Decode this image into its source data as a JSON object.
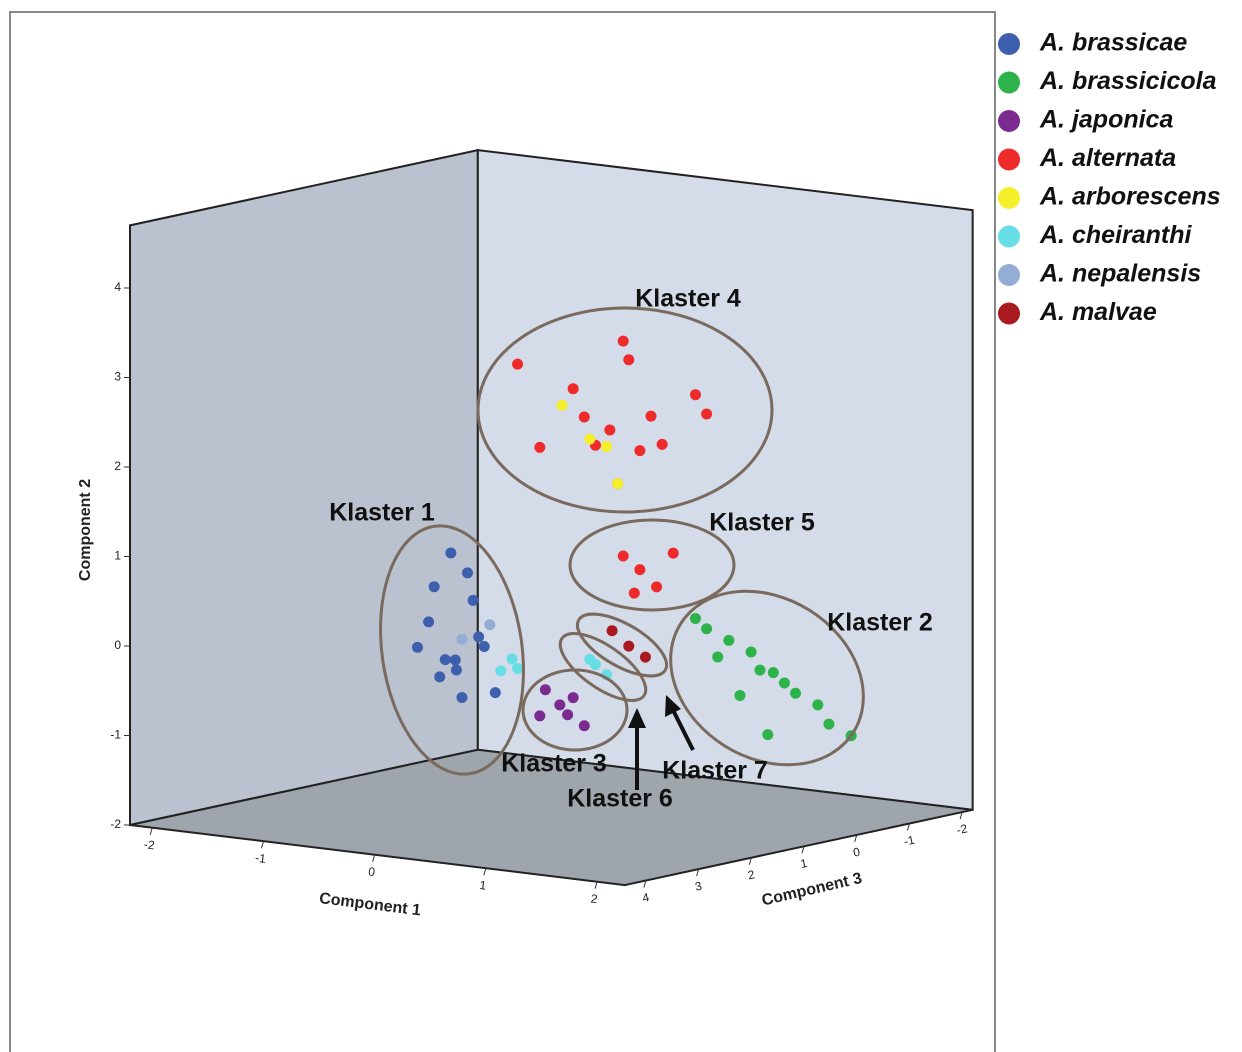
{
  "chart_data": {
    "type": "scatter3d",
    "x_label": "Component 1",
    "y_label": "Component 2",
    "z_label": "Component 3",
    "xlim": [
      -2.2,
      2.25
    ],
    "ylim": [
      -2,
      4.7
    ],
    "zlim": [
      -2.2,
      4.4
    ],
    "xticks": [
      -2,
      -1,
      0,
      1,
      2
    ],
    "yticks": [
      -2,
      -1,
      0,
      1,
      2,
      3,
      4
    ],
    "zticks": [
      4,
      3,
      2,
      1,
      0,
      -1,
      -2
    ],
    "legend": "right",
    "series": [
      {
        "name": "A. brassicae",
        "color": "#3e5fae",
        "x": [
          -1.36,
          -1.6,
          -1.1,
          -1.5,
          -1.2,
          -1.7,
          -1.0,
          -1.4,
          -1.3,
          -1.55,
          -1.15,
          -1.45,
          -1.25,
          -1.35
        ],
        "y": [
          -0.59,
          -0.2,
          -0.4,
          -0.8,
          0.1,
          -0.5,
          -0.9,
          0.6,
          -1.0,
          0.2,
          -0.3,
          -0.6,
          0.4,
          -0.7
        ],
        "z": [
          0,
          0,
          0,
          0,
          0,
          0,
          0,
          0,
          0,
          0,
          0,
          0,
          0,
          0
        ]
      },
      {
        "name": "A. brassicicola",
        "color": "#2db34a",
        "x": [
          1.38,
          0.9,
          1.1,
          1.6,
          1.9,
          0.8,
          1.3,
          1.7,
          2.0,
          1.0,
          1.5,
          1.2,
          2.2,
          1.45
        ],
        "y": [
          -0.29,
          0.1,
          0.0,
          -0.4,
          -0.6,
          0.2,
          -0.1,
          -0.5,
          -0.8,
          -0.2,
          -0.3,
          -0.6,
          -0.9,
          -1.0
        ],
        "z": [
          0,
          0,
          0,
          0,
          0,
          0,
          0,
          0,
          0,
          0,
          0,
          0,
          0,
          0
        ]
      },
      {
        "name": "A. japonica",
        "color": "#7b2a8f",
        "x": [
          -0.42,
          -0.55,
          -0.3,
          -0.6,
          -0.35,
          -0.2
        ],
        "y": [
          -0.95,
          -0.8,
          -0.85,
          -1.1,
          -1.05,
          -1.15
        ],
        "z": [
          0,
          0,
          0,
          0,
          0,
          0
        ]
      },
      {
        "name": "A. alternata",
        "color": "#ee2a2a",
        "x": [
          0.03,
          -0.3,
          0.2,
          -0.1,
          0.4,
          -0.8,
          0.8,
          0.1,
          0.15,
          -0.2,
          0.5,
          -0.6,
          0.9,
          0.3,
          0.3,
          0.15,
          0.45,
          0.6,
          0.25
        ],
        "y": [
          2.19,
          2.6,
          3.0,
          2.0,
          2.4,
          2.8,
          2.7,
          1.6,
          3.2,
          2.3,
          2.1,
          1.9,
          2.5,
          2.0,
          0.67,
          0.8,
          0.5,
          0.9,
          0.4
        ],
        "z": [
          0,
          0,
          0,
          0,
          0,
          0,
          0,
          0,
          0,
          0,
          0,
          0,
          0,
          0,
          0,
          0,
          0,
          0,
          0
        ]
      },
      {
        "name": "A. arborescens",
        "color": "#f5ee2a",
        "x": [
          -0.4,
          -0.15,
          0.0,
          0.1
        ],
        "y": [
          2.4,
          2.06,
          2.0,
          1.6
        ],
        "z": [
          0,
          0,
          0,
          0
        ]
      },
      {
        "name": "A. cheiranthi",
        "color": "#67dde6",
        "x": [
          -0.85,
          -0.95,
          -0.8,
          -0.1,
          0.0,
          -0.15
        ],
        "y": [
          -0.5,
          -0.65,
          -0.6,
          -0.45,
          -0.55,
          -0.4
        ],
        "z": [
          0,
          0,
          0,
          0,
          0,
          0
        ]
      },
      {
        "name": "A. nepalensis",
        "color": "#93add4",
        "x": [
          -1.3,
          -1.05
        ],
        "y": [
          -0.35,
          -0.15
        ],
        "z": [
          0,
          0
        ]
      },
      {
        "name": "A. malvae",
        "color": "#a81a1f",
        "x": [
          0.05,
          0.2,
          0.35
        ],
        "y": [
          -0.05,
          -0.2,
          -0.3
        ],
        "z": [
          0,
          0,
          0
        ]
      }
    ],
    "annotations": [
      "Klaster 1",
      "Klaster 2",
      "Klaster 3",
      "Klaster 4",
      "Klaster 5",
      "Klaster 6",
      "Klaster 7"
    ]
  }
}
